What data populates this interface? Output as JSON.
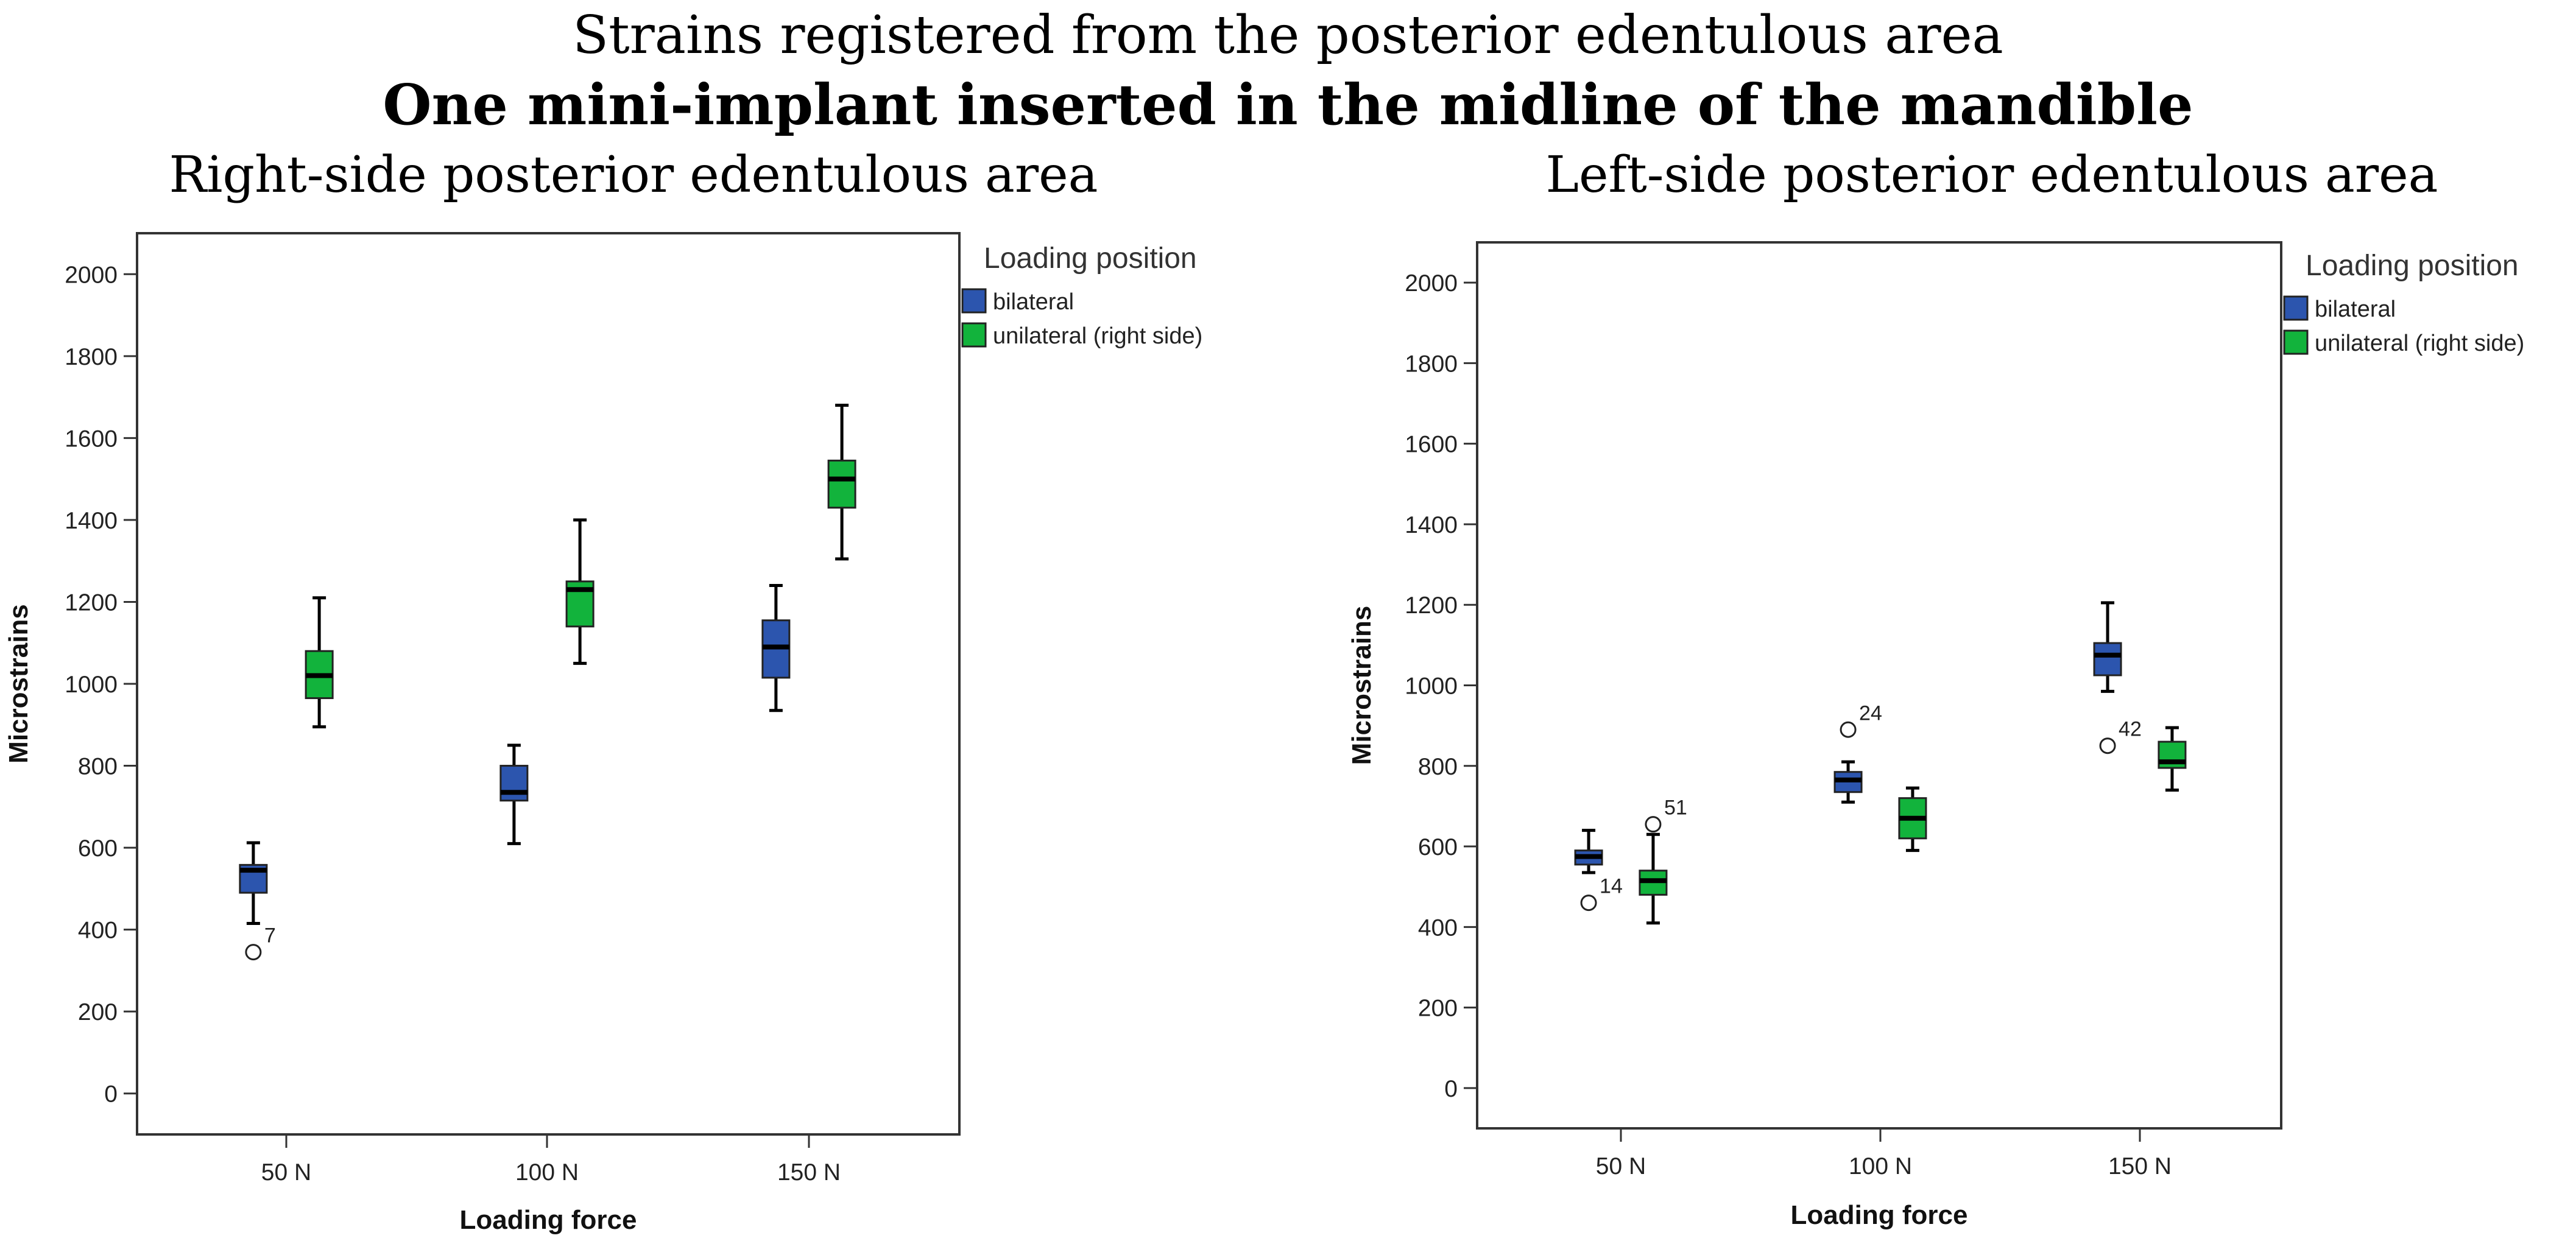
{
  "title": "Strains registered from the posterior edentulous area",
  "subtitle": "One mini-implant inserted in the midline of the mandible",
  "colors": {
    "bilateral": "#2c55ae",
    "unilateral": "#12b33c"
  },
  "chart_data": [
    {
      "type": "boxplot",
      "title": "Right-side posterior edentulous area",
      "xlabel": "Loading force",
      "ylabel": "Microstrains",
      "ylim": [
        -100,
        2100
      ],
      "yticks": [
        "2000",
        "1800",
        "1600",
        "1400",
        "1200",
        "1000",
        "800",
        "600",
        "400",
        "200",
        "0"
      ],
      "categories": [
        "50 N",
        "100 N",
        "150 N"
      ],
      "legend": {
        "title": "Loading position",
        "entries": [
          "bilateral",
          "unilateral  (right side)"
        ],
        "placement": "right"
      },
      "series": [
        {
          "name": "bilateral",
          "boxes": [
            {
              "category": "50 N",
              "min": 415,
              "q1": 490,
              "median": 545,
              "q3": 558,
              "max": 612,
              "outliers": [
                {
                  "value": 345,
                  "label": "7"
                }
              ]
            },
            {
              "category": "100 N",
              "min": 610,
              "q1": 715,
              "median": 735,
              "q3": 800,
              "max": 850,
              "outliers": []
            },
            {
              "category": "150 N",
              "min": 935,
              "q1": 1015,
              "median": 1090,
              "q3": 1155,
              "max": 1240,
              "outliers": []
            }
          ]
        },
        {
          "name": "unilateral  (right side)",
          "boxes": [
            {
              "category": "50 N",
              "min": 895,
              "q1": 965,
              "median": 1020,
              "q3": 1080,
              "max": 1210,
              "outliers": []
            },
            {
              "category": "100 N",
              "min": 1050,
              "q1": 1140,
              "median": 1230,
              "q3": 1250,
              "max": 1400,
              "outliers": []
            },
            {
              "category": "150 N",
              "min": 1305,
              "q1": 1430,
              "median": 1500,
              "q3": 1545,
              "max": 1680,
              "outliers": []
            }
          ]
        }
      ]
    },
    {
      "type": "boxplot",
      "title": "Left-side posterior edentulous area",
      "xlabel": "Loading force",
      "ylabel": "Microstrains",
      "ylim": [
        -100,
        2100
      ],
      "yticks": [
        "2000",
        "1800",
        "1600",
        "1400",
        "1200",
        "1000",
        "800",
        "600",
        "400",
        "200",
        "0"
      ],
      "categories": [
        "50 N",
        "100 N",
        "150 N"
      ],
      "legend": {
        "title": "Loading position",
        "entries": [
          "bilateral",
          "unilateral  (right side)"
        ],
        "placement": "right"
      },
      "series": [
        {
          "name": "bilateral",
          "boxes": [
            {
              "category": "50 N",
              "min": 535,
              "q1": 555,
              "median": 575,
              "q3": 590,
              "max": 640,
              "outliers": [
                {
                  "value": 460,
                  "label": "14"
                }
              ]
            },
            {
              "category": "100 N",
              "min": 710,
              "q1": 735,
              "median": 765,
              "q3": 785,
              "max": 810,
              "outliers": [
                {
                  "value": 890,
                  "label": "24"
                }
              ]
            },
            {
              "category": "150 N",
              "min": 985,
              "q1": 1025,
              "median": 1075,
              "q3": 1105,
              "max": 1205,
              "outliers": [
                {
                  "value": 850,
                  "label": "42"
                }
              ]
            }
          ]
        },
        {
          "name": "unilateral  (right side)",
          "boxes": [
            {
              "category": "50 N",
              "min": 410,
              "q1": 480,
              "median": 515,
              "q3": 540,
              "max": 630,
              "outliers": [
                {
                  "value": 655,
                  "label": "51"
                }
              ]
            },
            {
              "category": "100 N",
              "min": 590,
              "q1": 620,
              "median": 670,
              "q3": 720,
              "max": 745,
              "outliers": []
            },
            {
              "category": "150 N",
              "min": 740,
              "q1": 795,
              "median": 810,
              "q3": 860,
              "max": 895,
              "outliers": []
            }
          ]
        }
      ]
    }
  ]
}
